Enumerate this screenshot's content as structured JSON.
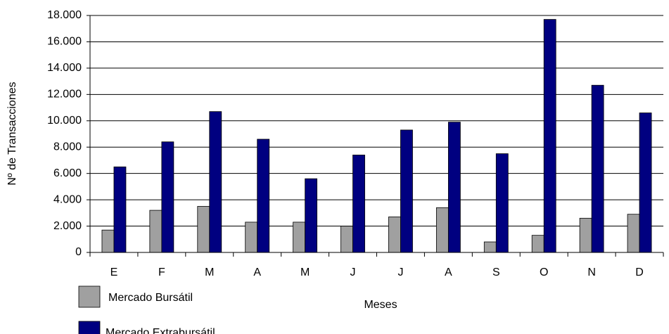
{
  "chart_data": {
    "type": "bar",
    "categories": [
      "E",
      "F",
      "M",
      "A",
      "M",
      "J",
      "J",
      "A",
      "S",
      "O",
      "N",
      "D"
    ],
    "series": [
      {
        "name": "Mercado Bursátil",
        "color": "#a0a0a0",
        "values": [
          1700,
          3200,
          3500,
          2300,
          2300,
          2000,
          2700,
          3400,
          800,
          1300,
          2600,
          2900
        ]
      },
      {
        "name": "Mercado Extrabursátil",
        "color": "#000080",
        "values": [
          6500,
          8400,
          10700,
          8600,
          5600,
          7400,
          9300,
          9900,
          7500,
          17700,
          12700,
          10600
        ]
      }
    ],
    "x_label": "Meses",
    "y_label": "Nº de Transacciones",
    "ylim": [
      0,
      18000
    ],
    "yticks": [
      0,
      {
        "value": 2000,
        "label": "2.000"
      },
      {
        "value": 4000,
        "label": "4.000"
      },
      {
        "value": 6000,
        "label": "6.000"
      },
      {
        "value": 8000,
        "label": "8.000"
      },
      {
        "value": 10000,
        "label": "10.000"
      },
      {
        "value": 12000,
        "label": "12.000"
      },
      {
        "value": 14000,
        "label": "14.000"
      },
      {
        "value": 16000,
        "label": "16.000"
      },
      {
        "value": 18000,
        "label": "18.000"
      }
    ],
    "grid": true,
    "legend": "bottom-left"
  }
}
